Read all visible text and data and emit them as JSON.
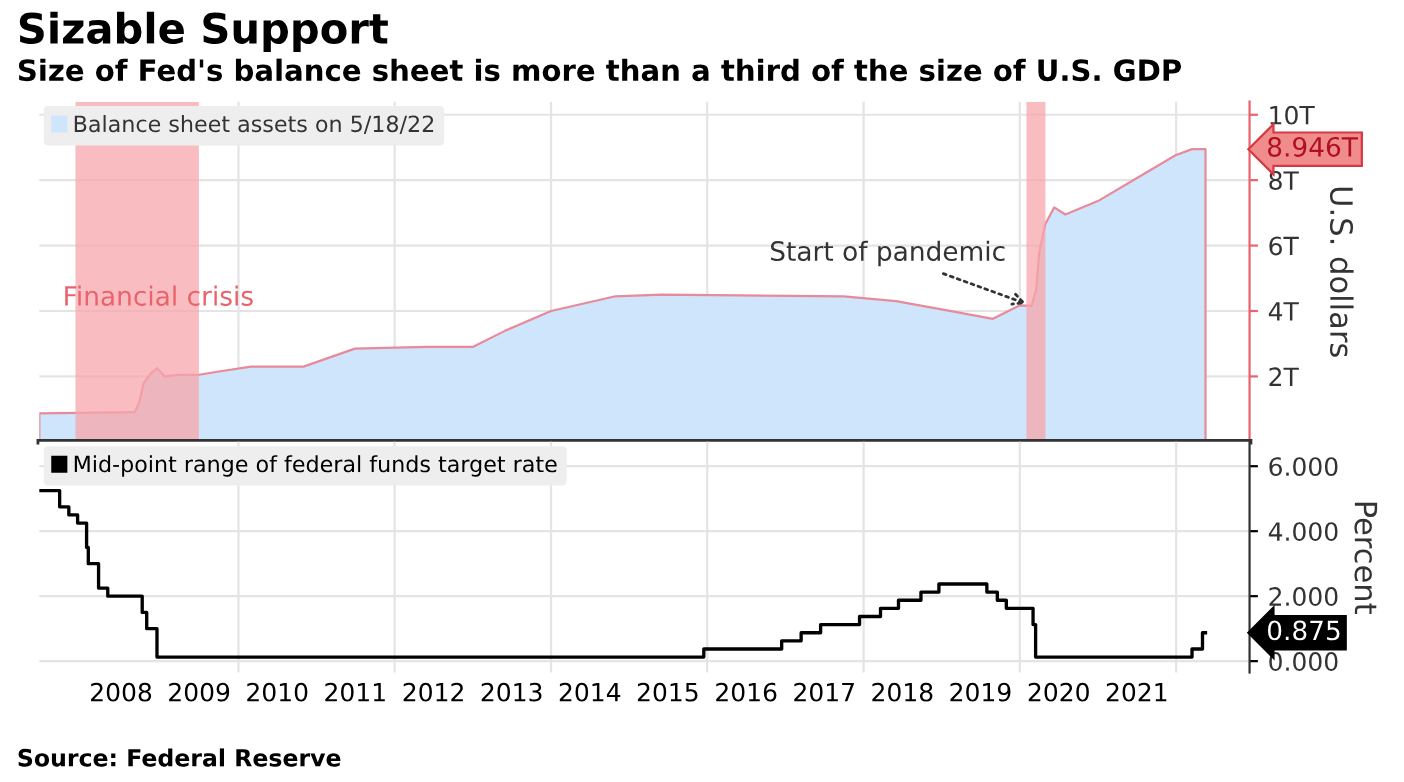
{
  "chart_data": [
    {
      "type": "area",
      "title": "Sizable Support",
      "subtitle": "Size of Fed's balance sheet is more than a third of the size of U.S. GDP",
      "ylabel": "U.S. dollars",
      "series": [
        {
          "name": "Balance sheet assets on 5/18/22",
          "color": "#cfe5fb",
          "x": [
            "2007-06-15",
            "2008-09-03",
            "2008-09-24",
            "2008-10-15",
            "2008-11-19",
            "2008-12-17",
            "2009-01-21",
            "2009-04-01",
            "2009-07-01",
            "2009-10-01",
            "2010-03-01",
            "2010-11-01",
            "2011-06-29",
            "2012-06-01",
            "2012-12-31",
            "2013-06-01",
            "2014-01-01",
            "2014-10-29",
            "2015-06-01",
            "2017-10-01",
            "2018-06-01",
            "2019-01-01",
            "2019-08-28",
            "2019-12-31",
            "2020-02-26",
            "2020-03-18",
            "2020-04-01",
            "2020-04-29",
            "2020-06-10",
            "2020-08-01",
            "2020-12-31",
            "2021-06-30",
            "2021-12-29",
            "2022-03-16",
            "2022-05-18"
          ],
          "values": [
            0.87,
            0.91,
            1.2,
            1.8,
            2.1,
            2.25,
            2.0,
            2.05,
            2.05,
            2.15,
            2.3,
            2.3,
            2.85,
            2.9,
            2.9,
            3.4,
            4.0,
            4.45,
            4.5,
            4.45,
            4.3,
            4.05,
            3.76,
            4.17,
            4.16,
            4.67,
            5.8,
            6.65,
            7.17,
            6.95,
            7.36,
            8.06,
            8.76,
            8.95,
            8.946
          ]
        }
      ],
      "xlim": [
        "2007-06-15",
        "2022-12-10"
      ],
      "xticks": [
        {
          "value": "2010-01-01",
          "label": null
        },
        {
          "value": "2012-01-01",
          "label": null
        },
        {
          "value": "2014-01-01",
          "label": null
        },
        {
          "value": "2016-01-01",
          "label": null
        },
        {
          "value": "2018-01-01",
          "label": null
        },
        {
          "value": "2020-01-01",
          "label": null
        },
        {
          "value": "2022-01-01",
          "label": null
        }
      ],
      "ylim": [
        0,
        10.4
      ],
      "yticks": [
        {
          "value": 2,
          "label": "2T"
        },
        {
          "value": 4,
          "label": "4T"
        },
        {
          "value": 6,
          "label": "6T"
        },
        {
          "value": 8,
          "label": "8T"
        },
        {
          "value": 10,
          "label": "10T"
        }
      ],
      "bands": [
        {
          "axis": "x",
          "from": "2007-12-01",
          "to": "2009-06-30",
          "label": "Financial crisis",
          "color": "#f7a5ab"
        },
        {
          "axis": "x",
          "from": "2020-02-01",
          "to": "2020-04-30",
          "color": "#f7a5ab"
        }
      ],
      "annotations": [
        {
          "text": "Start of pandemic",
          "x": "2020-02-26",
          "y": 4.16
        },
        {
          "text": "8.946T",
          "x": "2022-05-18",
          "y": 8.946
        }
      ],
      "grid": true,
      "legend": "top left",
      "tick_labels": "y"
    },
    {
      "type": "step",
      "ylabel": "Percent",
      "series": [
        {
          "name": "Mid-point range of federal funds target rate",
          "color": "#000000",
          "x": [
            "2007-06-15",
            "2007-09-18",
            "2007-10-31",
            "2007-12-11",
            "2008-01-22",
            "2008-01-30",
            "2008-03-18",
            "2008-04-30",
            "2008-10-08",
            "2008-10-29",
            "2008-12-16",
            "2015-12-16",
            "2016-12-14",
            "2017-03-15",
            "2017-06-14",
            "2017-12-13",
            "2018-03-21",
            "2018-06-13",
            "2018-09-26",
            "2018-12-19",
            "2019-07-31",
            "2019-09-18",
            "2019-10-30",
            "2020-03-03",
            "2020-03-15",
            "2022-03-16",
            "2022-05-04",
            "2022-05-18"
          ],
          "values": [
            5.25,
            4.75,
            4.5,
            4.25,
            3.5,
            3.0,
            2.25,
            2.0,
            1.5,
            1.0,
            0.125,
            0.375,
            0.625,
            0.875,
            1.125,
            1.375,
            1.625,
            1.875,
            2.125,
            2.375,
            2.125,
            1.875,
            1.625,
            1.125,
            0.125,
            0.375,
            0.875,
            0.875
          ]
        }
      ],
      "xlim": [
        "2007-06-15",
        "2022-12-10"
      ],
      "xticks": [
        {
          "value": "2008-07-01",
          "label": "2008"
        },
        {
          "value": "2009-07-01",
          "label": "2009"
        },
        {
          "value": "2010-07-01",
          "label": "2010"
        },
        {
          "value": "2011-07-01",
          "label": "2011"
        },
        {
          "value": "2012-07-01",
          "label": "2012"
        },
        {
          "value": "2013-07-01",
          "label": "2013"
        },
        {
          "value": "2014-07-01",
          "label": "2014"
        },
        {
          "value": "2015-07-01",
          "label": "2015"
        },
        {
          "value": "2016-07-01",
          "label": "2016"
        },
        {
          "value": "2017-07-01",
          "label": "2017"
        },
        {
          "value": "2018-07-01",
          "label": "2018"
        },
        {
          "value": "2019-07-01",
          "label": "2019"
        },
        {
          "value": "2020-07-01",
          "label": "2020"
        },
        {
          "value": "2021-07-01",
          "label": "2021"
        },
        {
          "value": "2010-01-01",
          "label": null
        },
        {
          "value": "2012-01-01",
          "label": null
        },
        {
          "value": "2014-01-01",
          "label": null
        },
        {
          "value": "2016-01-01",
          "label": null
        },
        {
          "value": "2018-01-01",
          "label": null
        },
        {
          "value": "2020-01-01",
          "label": null
        },
        {
          "value": "2022-01-01",
          "label": null
        }
      ],
      "ylim": [
        -0.35,
        6.75
      ],
      "yticks": [
        {
          "value": 0,
          "label": "0.000"
        },
        {
          "value": 2,
          "label": "2.000"
        },
        {
          "value": 4,
          "label": "4.000"
        },
        {
          "value": 6,
          "label": "6.000"
        }
      ],
      "annotations": [
        {
          "text": "0.875",
          "x": "2022-05-18",
          "y": 0.875
        },
        "Source: Federal Reserve"
      ],
      "grid": true,
      "legend": "top left"
    }
  ]
}
